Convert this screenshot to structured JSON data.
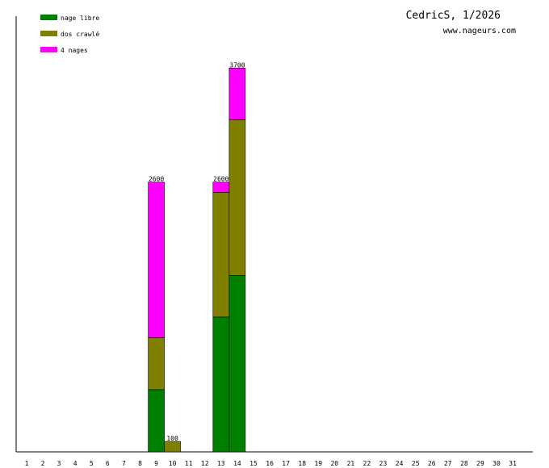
{
  "chart_data": {
    "type": "bar",
    "stacked": true,
    "title": "CedricS, 1/2026",
    "subtitle": "www.nageurs.com",
    "xlabel": "",
    "ylabel": "",
    "ylim": [
      0,
      4200
    ],
    "grid": false,
    "legend_position": "top-left",
    "categories": [
      "1",
      "2",
      "3",
      "4",
      "5",
      "6",
      "7",
      "8",
      "9",
      "10",
      "11",
      "12",
      "13",
      "14",
      "15",
      "16",
      "17",
      "18",
      "19",
      "20",
      "21",
      "22",
      "23",
      "24",
      "25",
      "26",
      "27",
      "28",
      "29",
      "30",
      "31"
    ],
    "series": [
      {
        "name": "nage libre",
        "color": "#008000",
        "values": [
          0,
          0,
          0,
          0,
          0,
          0,
          0,
          0,
          600,
          0,
          0,
          0,
          1300,
          1700,
          0,
          0,
          0,
          0,
          0,
          0,
          0,
          0,
          0,
          0,
          0,
          0,
          0,
          0,
          0,
          0,
          0
        ]
      },
      {
        "name": "dos crawlé",
        "color": "#808000",
        "values": [
          0,
          0,
          0,
          0,
          0,
          0,
          0,
          0,
          500,
          100,
          0,
          0,
          1200,
          1500,
          0,
          0,
          0,
          0,
          0,
          0,
          0,
          0,
          0,
          0,
          0,
          0,
          0,
          0,
          0,
          0,
          0
        ]
      },
      {
        "name": "4 nages",
        "color": "#ff00ff",
        "values": [
          0,
          0,
          0,
          0,
          0,
          0,
          0,
          0,
          1500,
          0,
          0,
          0,
          100,
          500,
          0,
          0,
          0,
          0,
          0,
          0,
          0,
          0,
          0,
          0,
          0,
          0,
          0,
          0,
          0,
          0,
          0
        ]
      }
    ],
    "totals": [
      "",
      "",
      "",
      "",
      "",
      "",
      "",
      "",
      "2600",
      "100",
      "",
      "",
      "2600",
      "3700",
      "",
      "",
      "",
      "",
      "",
      "",
      "",
      "",
      "",
      "",
      "",
      "",
      "",
      "",
      "",
      "",
      ""
    ]
  }
}
